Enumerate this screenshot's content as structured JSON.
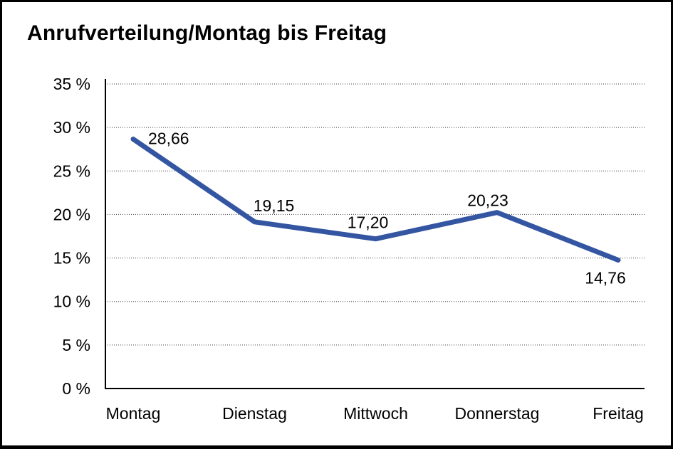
{
  "title": "Anrufverteilung/Montag bis Freitag",
  "chart_data": {
    "type": "line",
    "title": "Anrufverteilung/Montag bis Freitag",
    "categories": [
      "Montag",
      "Dienstag",
      "Mittwoch",
      "Donnerstag",
      "Freitag"
    ],
    "series": [
      {
        "name": "Anrufverteilung",
        "values": [
          28.66,
          19.15,
          17.2,
          20.23,
          14.76
        ],
        "value_labels": [
          "28,66",
          "19,15",
          "17,20",
          "20,23",
          "14,76"
        ]
      }
    ],
    "xlabel": "",
    "ylabel": "",
    "ylim": [
      0,
      35
    ],
    "y_tick_step": 5,
    "y_tick_labels": [
      "0 %",
      "5 %",
      "10 %",
      "15 %",
      "20 %",
      "25 %",
      "30 %",
      "35 %"
    ],
    "grid": "horizontal-dotted",
    "legend_position": "none",
    "colors": {
      "line": "#3456A2",
      "axis": "#000000",
      "gridline": "#3c3c3c",
      "text": "#000000",
      "background": "#ffffff"
    }
  }
}
